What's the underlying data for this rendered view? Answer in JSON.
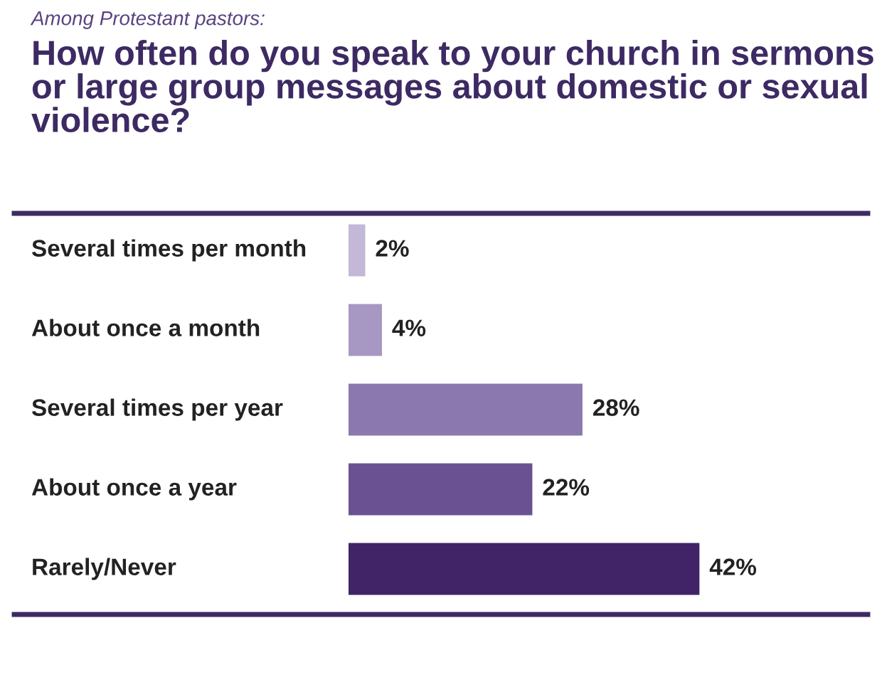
{
  "chart_data": {
    "type": "bar",
    "orientation": "horizontal",
    "subtitle": "Among Protestant pastors:",
    "title": "How often do you speak to your church in sermons or large group messages about domestic or sexual violence?",
    "categories": [
      "Several times per month",
      "About once a month",
      "Several times per year",
      "About once a year",
      "Rarely/Never"
    ],
    "values": [
      2,
      4,
      28,
      22,
      42
    ],
    "colors": [
      "#c3b8d6",
      "#a797c3",
      "#8a78ae",
      "#6a5292",
      "#412468"
    ],
    "value_labels": [
      "2%",
      "4%",
      "28%",
      "22%",
      "42%"
    ]
  }
}
